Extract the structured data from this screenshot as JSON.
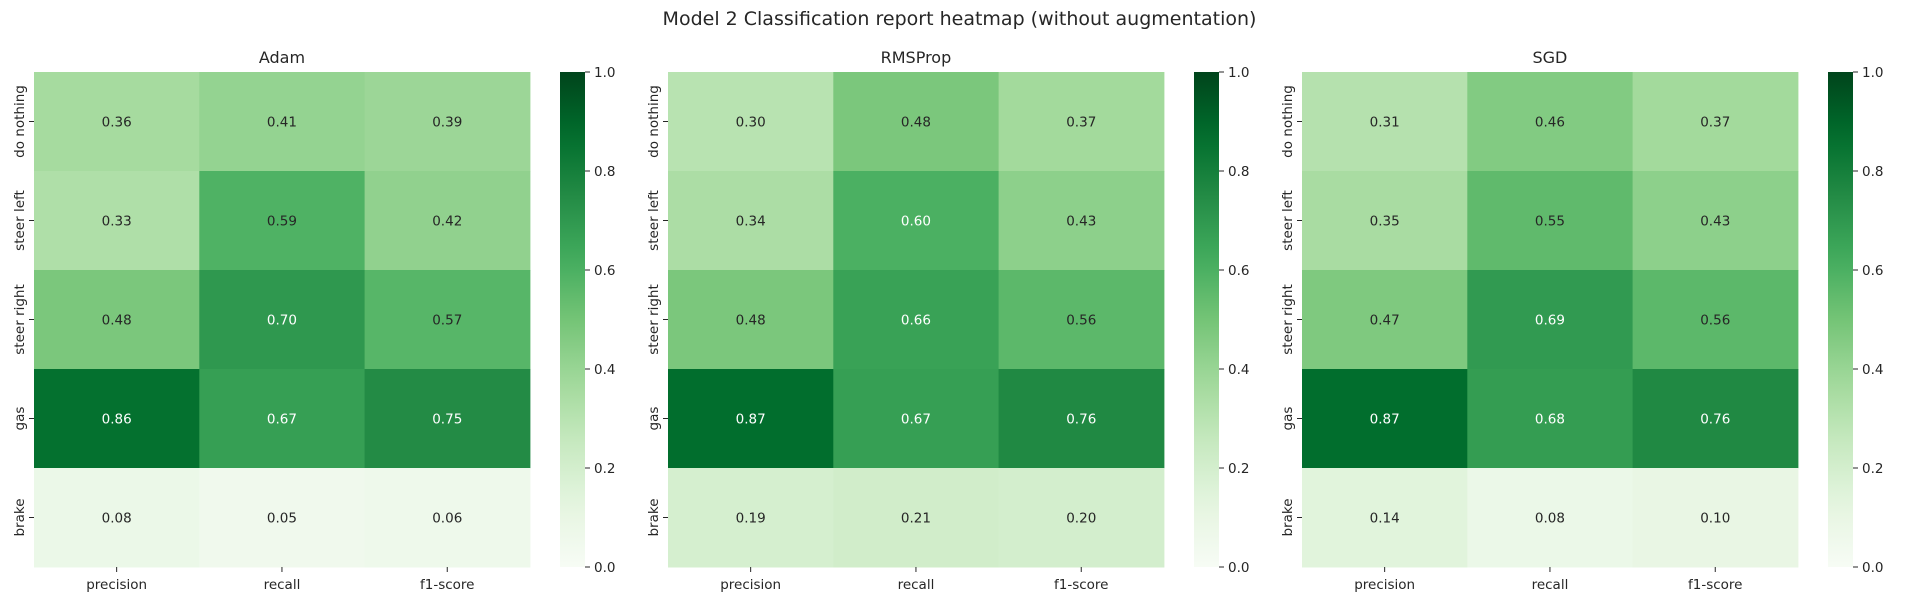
{
  "figure": {
    "title": "Model 2 Classification report heatmap (without augmentation)"
  },
  "chart_data": [
    {
      "type": "heatmap",
      "title": "Adam",
      "columns": [
        "precision",
        "recall",
        "f1-score"
      ],
      "rows": [
        "do nothing",
        "steer left",
        "steer right",
        "gas",
        "brake"
      ],
      "values": [
        [
          0.36,
          0.41,
          0.39
        ],
        [
          0.33,
          0.59,
          0.42
        ],
        [
          0.48,
          0.7,
          0.57
        ],
        [
          0.86,
          0.67,
          0.75
        ],
        [
          0.08,
          0.05,
          0.06
        ]
      ],
      "vmin": 0.0,
      "vmax": 1.0,
      "colorbar_ticks": [
        "0.0",
        "0.2",
        "0.4",
        "0.6",
        "0.8",
        "1.0"
      ],
      "colormap": "Greens"
    },
    {
      "type": "heatmap",
      "title": "RMSProp",
      "columns": [
        "precision",
        "recall",
        "f1-score"
      ],
      "rows": [
        "do nothing",
        "steer left",
        "steer right",
        "gas",
        "brake"
      ],
      "values": [
        [
          0.3,
          0.48,
          0.37
        ],
        [
          0.34,
          0.6,
          0.43
        ],
        [
          0.48,
          0.66,
          0.56
        ],
        [
          0.87,
          0.67,
          0.76
        ],
        [
          0.19,
          0.21,
          0.2
        ]
      ],
      "vmin": 0.0,
      "vmax": 1.0,
      "colorbar_ticks": [
        "0.0",
        "0.2",
        "0.4",
        "0.6",
        "0.8",
        "1.0"
      ],
      "colormap": "Greens"
    },
    {
      "type": "heatmap",
      "title": "SGD",
      "columns": [
        "precision",
        "recall",
        "f1-score"
      ],
      "rows": [
        "do nothing",
        "steer left",
        "steer right",
        "gas",
        "brake"
      ],
      "values": [
        [
          0.31,
          0.46,
          0.37
        ],
        [
          0.35,
          0.55,
          0.43
        ],
        [
          0.47,
          0.69,
          0.56
        ],
        [
          0.87,
          0.68,
          0.76
        ],
        [
          0.14,
          0.08,
          0.1
        ]
      ],
      "vmin": 0.0,
      "vmax": 1.0,
      "colorbar_ticks": [
        "0.0",
        "0.2",
        "0.4",
        "0.6",
        "0.8",
        "1.0"
      ],
      "colormap": "Greens"
    }
  ]
}
